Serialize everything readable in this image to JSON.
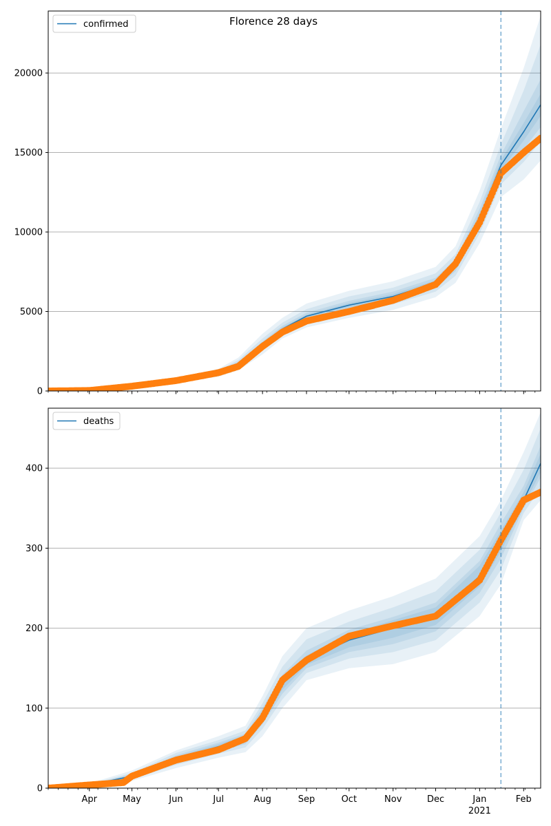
{
  "title": "Florence 28 days",
  "colors": {
    "model_line": "#1f77b4",
    "observed_points": "#ff7f0e",
    "band": "#1f77b4",
    "grid": "#b0b0b0",
    "forecast_line": "#1f77b4"
  },
  "x_axis": {
    "month_labels": [
      "Apr",
      "May",
      "Jun",
      "Jul",
      "Aug",
      "Sep",
      "Oct",
      "Nov",
      "Dec",
      "Jan",
      "Feb"
    ],
    "month_dates": [
      "2020-04-01",
      "2020-05-01",
      "2020-06-01",
      "2020-07-01",
      "2020-08-01",
      "2020-09-01",
      "2020-10-01",
      "2020-11-01",
      "2020-12-01",
      "2021-01-01",
      "2021-02-01"
    ],
    "year_label": "2021",
    "start": "2020-03-03",
    "end": "2021-02-13",
    "forecast_start": "2021-01-16"
  },
  "chart_data": [
    {
      "type": "line",
      "legend": "confirmed",
      "legend_position": "top-left",
      "grid": "y",
      "ylim": [
        0,
        23900
      ],
      "yticks": [
        0,
        5000,
        10000,
        15000,
        20000
      ],
      "ytick_labels": [
        "0",
        "5000",
        "10000",
        "15000",
        "20000"
      ],
      "model": {
        "dates": [
          "2020-03-03",
          "2020-04-01",
          "2020-05-01",
          "2020-06-01",
          "2020-07-01",
          "2020-07-15",
          "2020-08-01",
          "2020-08-15",
          "2020-09-01",
          "2020-10-01",
          "2020-11-01",
          "2020-12-01",
          "2020-12-15",
          "2021-01-01",
          "2021-01-16",
          "2021-02-01",
          "2021-02-13"
        ],
        "values": [
          0,
          30,
          300,
          650,
          1150,
          1700,
          2900,
          3900,
          4700,
          5400,
          5950,
          6800,
          7900,
          10900,
          14200,
          16300,
          18000
        ],
        "bands": [
          {
            "lower": [
              0,
              20,
              220,
              500,
              900,
              1300,
              2300,
              3300,
              4000,
              4600,
              5100,
              5900,
              6800,
              9300,
              12200,
              13300,
              14500
            ],
            "upper": [
              0,
              40,
              380,
              800,
              1400,
              2100,
              3600,
              4600,
              5500,
              6300,
              6900,
              7800,
              9100,
              12600,
              16500,
              20300,
              23600
            ]
          },
          {
            "lower": [
              0,
              23,
              250,
              560,
              1000,
              1450,
              2550,
              3550,
              4300,
              4900,
              5450,
              6250,
              7250,
              9900,
              13000,
              14400,
              15700
            ],
            "upper": [
              0,
              37,
              350,
              740,
              1300,
              1950,
              3300,
              4300,
              5150,
              5950,
              6500,
              7400,
              8600,
              11900,
              15500,
              18900,
              21800
            ]
          },
          {
            "lower": [
              0,
              26,
              270,
              600,
              1060,
              1560,
              2700,
              3700,
              4480,
              5130,
              5650,
              6480,
              7520,
              10350,
              13550,
              15200,
              16600
            ],
            "upper": [
              0,
              34,
              330,
              700,
              1240,
              1840,
              3100,
              4100,
              4920,
              5670,
              6250,
              7120,
              8280,
              11450,
              14850,
              17600,
              19600
            ]
          },
          {
            "lower": [
              0,
              28,
              285,
              625,
              1100,
              1640,
              2800,
              3800,
              4600,
              5270,
              5800,
              6640,
              7710,
              10620,
              13880,
              15750,
              17300
            ],
            "upper": [
              0,
              32,
              315,
              675,
              1200,
              1760,
              3000,
              4000,
              4800,
              5530,
              6100,
              6960,
              8090,
              11180,
              14520,
              16850,
              18700
            ]
          }
        ]
      },
      "observed": {
        "dates": [
          "2020-03-03",
          "2020-04-01",
          "2020-05-01",
          "2020-06-01",
          "2020-07-01",
          "2020-07-15",
          "2020-08-01",
          "2020-08-15",
          "2020-09-01",
          "2020-10-01",
          "2020-11-01",
          "2020-12-01",
          "2020-12-15",
          "2021-01-01",
          "2021-01-16",
          "2021-02-01",
          "2021-02-13"
        ],
        "values": [
          0,
          30,
          300,
          650,
          1150,
          1550,
          2800,
          3700,
          4400,
          5000,
          5700,
          6700,
          8000,
          10600,
          13700,
          15000,
          15900
        ]
      }
    },
    {
      "type": "line",
      "legend": "deaths",
      "legend_position": "top-left",
      "grid": "y",
      "ylim": [
        0,
        475
      ],
      "yticks": [
        0,
        100,
        200,
        300,
        400
      ],
      "ytick_labels": [
        "0",
        "100",
        "200",
        "300",
        "400"
      ],
      "model": {
        "dates": [
          "2020-03-03",
          "2020-04-01",
          "2020-05-01",
          "2020-06-01",
          "2020-07-01",
          "2020-07-20",
          "2020-08-01",
          "2020-08-15",
          "2020-09-01",
          "2020-10-01",
          "2020-11-01",
          "2020-12-01",
          "2021-01-01",
          "2021-01-16",
          "2021-02-01",
          "2021-02-13"
        ],
        "values": [
          0,
          4,
          15,
          37,
          52,
          62,
          90,
          130,
          160,
          185,
          200,
          215,
          265,
          310,
          360,
          406
        ],
        "bands": [
          {
            "lower": [
              0,
              2,
              9,
              25,
              38,
              45,
              65,
              100,
              135,
              150,
              155,
              170,
              215,
              255,
              335,
              360
            ],
            "upper": [
              0,
              6,
              22,
              47,
              65,
              78,
              115,
              165,
              200,
              222,
              240,
              262,
              315,
              360,
              420,
              470
            ]
          },
          {
            "lower": [
              0,
              3,
              11,
              29,
              43,
              51,
              74,
              111,
              144,
              162,
              170,
              185,
              232,
              273,
              344,
              375
            ],
            "upper": [
              0,
              5,
              19,
              44,
              60,
              72,
              106,
              152,
              186,
              208,
              226,
              246,
              298,
              345,
              398,
              450
            ]
          },
          {
            "lower": [
              0,
              3.5,
              12.5,
              32,
              46,
              55,
              80,
              118,
              150,
              170,
              180,
              196,
              244,
              287,
              350,
              388
            ],
            "upper": [
              0,
              4.5,
              17.5,
              41,
              57,
              68,
              100,
              142,
              172,
              198,
              214,
              232,
              284,
              331,
              378,
              428
            ]
          },
          {
            "lower": [
              0,
              3.7,
              13.5,
              34,
              48,
              58,
              84,
              123,
              154,
              176,
              188,
              204,
              252,
              296,
              353,
              395
            ],
            "upper": [
              0,
              4.3,
              16.5,
              39,
              55,
              66,
              96,
              137,
              166,
              193,
              210,
              226,
              278,
              322,
              370,
              418
            ]
          }
        ]
      },
      "observed": {
        "dates": [
          "2020-03-03",
          "2020-04-01",
          "2020-04-25",
          "2020-05-01",
          "2020-06-01",
          "2020-07-01",
          "2020-07-20",
          "2020-08-01",
          "2020-08-15",
          "2020-09-01",
          "2020-10-01",
          "2020-11-01",
          "2020-12-01",
          "2021-01-01",
          "2021-01-16",
          "2021-02-01",
          "2021-02-13"
        ],
        "values": [
          0,
          4,
          7,
          15,
          35,
          48,
          62,
          88,
          135,
          160,
          190,
          203,
          215,
          260,
          310,
          360,
          370
        ]
      }
    }
  ]
}
